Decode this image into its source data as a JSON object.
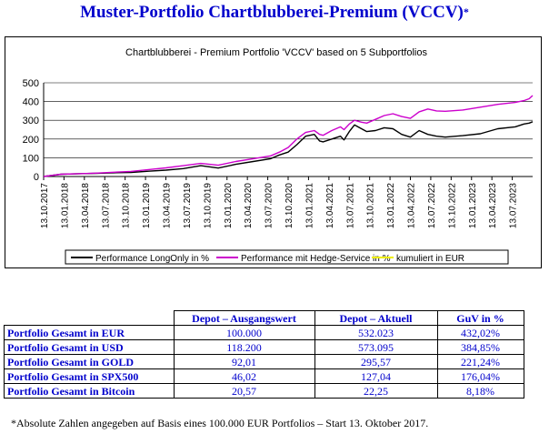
{
  "page": {
    "heading": "Muster-Portfolio Chartblubberei-Premium (VCCV)",
    "heading_star": "*"
  },
  "chart_data": {
    "type": "line",
    "title": "Chartblubberei - Premium Portfolio 'VCCV' based on 5 Subportfolios",
    "xlabel": "",
    "ylabel": "",
    "ylim": [
      0,
      500
    ],
    "yticks": [
      0,
      100,
      200,
      300,
      400,
      500
    ],
    "grid": true,
    "legend_position": "bottom",
    "x_tick_labels": [
      "13.10.2017",
      "13.01.2018",
      "13.04.2018",
      "13.07.2018",
      "13.10.2018",
      "13.01.2019",
      "13.04.2019",
      "13.07.2019",
      "13.10.2019",
      "13.01.2020",
      "13.04.2020",
      "13.07.2020",
      "13.10.2020",
      "13.01.2021",
      "13.04.2021",
      "13.07.2021",
      "13.10.2021",
      "13.01.2022",
      "13.04.2022",
      "13.07.2022",
      "13.10.2022",
      "13.01.2023",
      "13.04.2023",
      "13.07.2023"
    ],
    "series": [
      {
        "name": "Performance LongOnly in %",
        "color": "#000000",
        "points": [
          [
            0,
            0
          ],
          [
            1,
            12
          ],
          [
            2,
            15
          ],
          [
            3,
            17
          ],
          [
            4,
            20
          ],
          [
            5,
            22
          ],
          [
            6,
            28
          ],
          [
            7,
            34
          ],
          [
            8,
            42
          ],
          [
            9,
            58
          ],
          [
            10,
            45
          ],
          [
            11,
            65
          ],
          [
            12,
            80
          ],
          [
            13,
            95
          ],
          [
            13.5,
            115
          ],
          [
            14,
            130
          ],
          [
            14.5,
            170
          ],
          [
            15,
            215
          ],
          [
            15.5,
            225
          ],
          [
            15.8,
            190
          ],
          [
            16,
            185
          ],
          [
            16.5,
            200
          ],
          [
            17,
            215
          ],
          [
            17.2,
            195
          ],
          [
            17.5,
            240
          ],
          [
            17.8,
            275
          ],
          [
            18.2,
            255
          ],
          [
            18.5,
            240
          ],
          [
            19,
            245
          ],
          [
            19.5,
            260
          ],
          [
            20,
            255
          ],
          [
            20.5,
            225
          ],
          [
            21,
            210
          ],
          [
            21.5,
            245
          ],
          [
            22,
            225
          ],
          [
            22.5,
            215
          ],
          [
            23,
            210
          ],
          [
            24,
            218
          ],
          [
            25,
            228
          ],
          [
            26,
            255
          ],
          [
            27,
            265
          ],
          [
            27.5,
            280
          ],
          [
            27.8,
            285
          ],
          [
            28,
            292
          ]
        ]
      },
      {
        "name": "Performance mit Hedge-Service in %",
        "color": "#cc00cc",
        "points": [
          [
            0,
            0
          ],
          [
            1,
            12
          ],
          [
            2,
            15
          ],
          [
            3,
            18
          ],
          [
            4,
            23
          ],
          [
            5,
            27
          ],
          [
            6,
            37
          ],
          [
            7,
            46
          ],
          [
            8,
            58
          ],
          [
            9,
            70
          ],
          [
            10,
            60
          ],
          [
            11,
            80
          ],
          [
            12,
            95
          ],
          [
            13,
            110
          ],
          [
            13.5,
            130
          ],
          [
            14,
            155
          ],
          [
            14.5,
            200
          ],
          [
            15,
            235
          ],
          [
            15.5,
            245
          ],
          [
            15.8,
            225
          ],
          [
            16,
            220
          ],
          [
            16.5,
            245
          ],
          [
            17,
            265
          ],
          [
            17.2,
            250
          ],
          [
            17.5,
            280
          ],
          [
            17.8,
            300
          ],
          [
            18.2,
            290
          ],
          [
            18.5,
            285
          ],
          [
            19,
            305
          ],
          [
            19.5,
            325
          ],
          [
            20,
            335
          ],
          [
            20.5,
            320
          ],
          [
            21,
            310
          ],
          [
            21.5,
            345
          ],
          [
            22,
            360
          ],
          [
            22.5,
            350
          ],
          [
            23,
            348
          ],
          [
            24,
            355
          ],
          [
            25,
            370
          ],
          [
            26,
            385
          ],
          [
            27,
            395
          ],
          [
            27.5,
            405
          ],
          [
            27.8,
            415
          ],
          [
            28,
            432
          ]
        ]
      },
      {
        "name": "kumuliert in EUR",
        "color": "#eeee00",
        "points": []
      }
    ]
  },
  "table": {
    "headers": [
      "Depot – Ausgangswert",
      "Depot – Aktuell",
      "GuV in %"
    ],
    "rows": [
      {
        "label": "Portfolio Gesamt in EUR",
        "start": "100.000",
        "current": "532.023",
        "guv": "432,02%"
      },
      {
        "label": "Portfolio Gesamt in USD",
        "start": "118.200",
        "current": "573.095",
        "guv": "384,85%"
      },
      {
        "label": "Portfolio Gesamt in GOLD",
        "start": "92,01",
        "current": "295,57",
        "guv": "221,24%"
      },
      {
        "label": "Portfolio Gesamt in SPX500",
        "start": "46,02",
        "current": "127,04",
        "guv": "176,04%"
      },
      {
        "label": "Portfolio Gesamt in Bitcoin",
        "start": "20,57",
        "current": "22,25",
        "guv": "8,18%"
      }
    ]
  },
  "footnote": "*Absolute Zahlen angegeben auf Basis eines 100.000 EUR Portfolios – Start 13. Oktober 2017."
}
